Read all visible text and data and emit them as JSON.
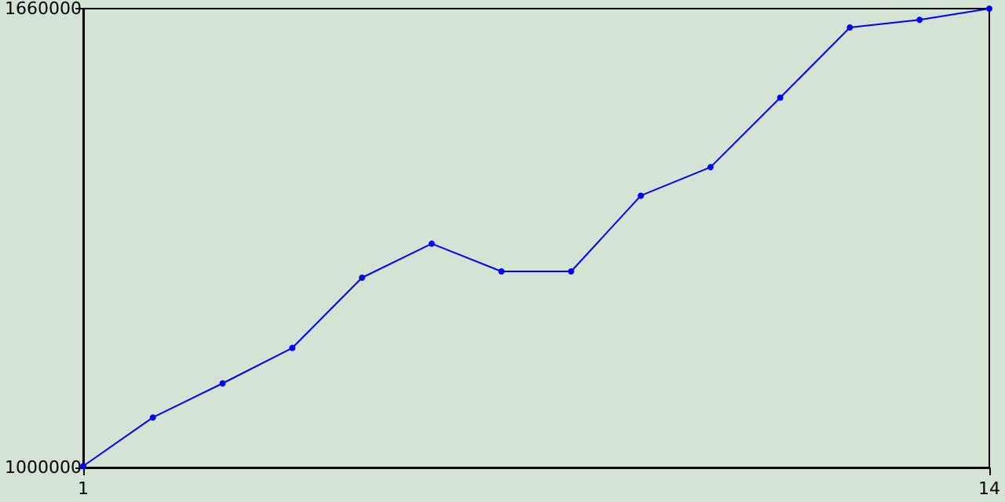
{
  "chart_data": {
    "type": "line",
    "x": [
      1,
      2,
      3,
      4,
      5,
      6,
      7,
      8,
      9,
      10,
      11,
      12,
      13,
      14
    ],
    "series": [
      {
        "color": "#0000ff",
        "values": [
          1002000,
          1072000,
          1121000,
          1172000,
          1273000,
          1322000,
          1282000,
          1282000,
          1391000,
          1432000,
          1532000,
          1633000,
          1644000,
          1660000
        ]
      }
    ],
    "xlim": [
      1,
      14
    ],
    "xticks": [
      1,
      14
    ],
    "ylim": [
      1000000,
      1660000
    ],
    "yticks": [
      1000000,
      1660000
    ],
    "grid": false,
    "marker": "circle",
    "line_style": "solid"
  }
}
